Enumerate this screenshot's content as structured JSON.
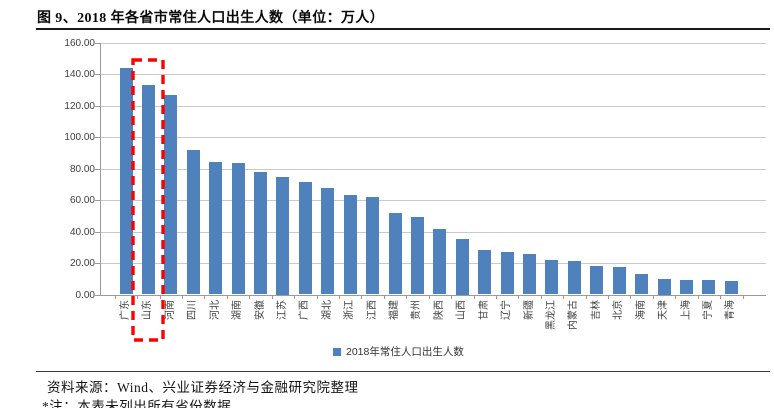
{
  "page": {
    "title": "图 9、2018 年各省市常住人口出生人数（单位：万人）",
    "source_line": "资料来源：Wind、兴业证券经济与金融研究院整理",
    "note_line": "*注：本表未列出所有省份数据"
  },
  "chart_data": {
    "type": "bar",
    "title": "2018 年各省市常住人口出生人数",
    "unit": "万人",
    "series_name": "2018年常住人口出生人数",
    "categories": [
      "广东",
      "山东",
      "河南",
      "四川",
      "河北",
      "湖南",
      "安徽",
      "江苏",
      "广西",
      "湖北",
      "浙江",
      "江西",
      "福建",
      "贵州",
      "陕西",
      "山西",
      "甘肃",
      "辽宁",
      "新疆",
      "黑龙江",
      "内蒙古",
      "吉林",
      "北京",
      "海南",
      "天津",
      "上海",
      "宁夏",
      "青海"
    ],
    "values": [
      144,
      133,
      127,
      92,
      84.5,
      83.5,
      78,
      75,
      71.5,
      68,
      63,
      62,
      52,
      49,
      41.5,
      35,
      28.5,
      27,
      26,
      22,
      21,
      18,
      17.5,
      13,
      10,
      9.3,
      9.2,
      8.5
    ],
    "ylim": [
      0,
      160
    ],
    "ytick_step": 20,
    "ytick_labels": [
      "0.00",
      "20.00",
      "40.00",
      "60.00",
      "80.00",
      "100.00",
      "120.00",
      "140.00",
      "160.00"
    ],
    "grid": true,
    "legend_position": "bottom",
    "bar_color": "#4F81BD",
    "grid_color": "#C9C9C9",
    "axis_color": "#9A9A9A",
    "highlight": {
      "category": "山东",
      "style": "red-dashed-box",
      "color": "#FF0000"
    }
  }
}
